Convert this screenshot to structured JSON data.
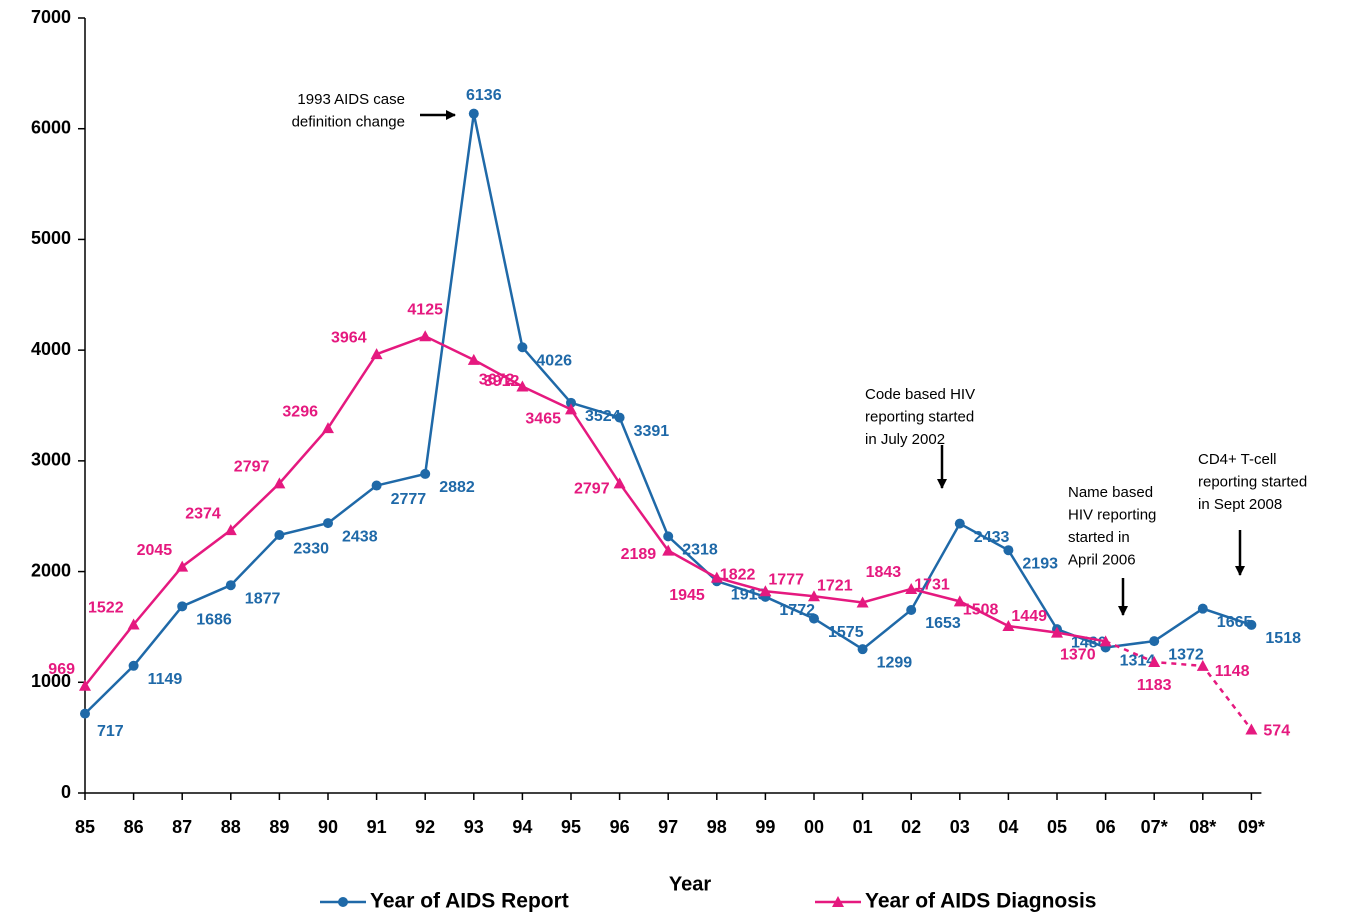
{
  "chart_data": {
    "type": "line",
    "x_label": "Year",
    "categories": [
      "85",
      "86",
      "87",
      "88",
      "89",
      "90",
      "91",
      "92",
      "93",
      "94",
      "95",
      "96",
      "97",
      "98",
      "99",
      "00",
      "01",
      "02",
      "03",
      "04",
      "05",
      "06",
      "07*",
      "08*",
      "09*"
    ],
    "series": [
      {
        "name": "Year of AIDS Report",
        "color": "#1f69a8",
        "marker": "circle",
        "values": [
          717,
          1149,
          1686,
          1877,
          2330,
          2438,
          2777,
          2882,
          6136,
          4026,
          3524,
          3391,
          2318,
          1913,
          1772,
          1575,
          1299,
          1653,
          2433,
          2193,
          1480,
          1314,
          1372,
          1665,
          1518
        ]
      },
      {
        "name": "Year of AIDS Diagnosis",
        "color": "#e5197f",
        "marker": "triangle",
        "dashed_from": "06",
        "values": [
          969,
          1522,
          2045,
          2374,
          2797,
          3296,
          3964,
          4125,
          3912,
          3672,
          3465,
          2797,
          2189,
          1945,
          1822,
          1777,
          1721,
          1843,
          1731,
          1508,
          1449,
          1370,
          1183,
          1148,
          574
        ]
      }
    ],
    "ylim": [
      0,
      7000
    ],
    "yticks": [
      0,
      1000,
      2000,
      3000,
      4000,
      5000,
      6000,
      7000
    ],
    "annotations": [
      {
        "lines": [
          "1993 AIDS case",
          "definition change"
        ]
      },
      {
        "lines": [
          "Code based HIV",
          "reporting started",
          "in July 2002"
        ]
      },
      {
        "lines": [
          "Name based",
          "HIV reporting",
          "started in",
          "April 2006"
        ]
      },
      {
        "lines": [
          "CD4+ T-cell",
          "reporting started",
          "in Sept 2008"
        ]
      }
    ]
  }
}
